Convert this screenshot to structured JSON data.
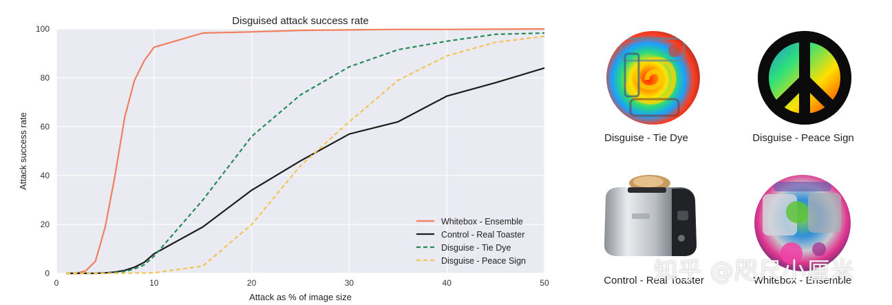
{
  "chart_data": {
    "type": "line",
    "title": "Disguised attack success rate",
    "xlabel": "Attack as % of image size",
    "ylabel": "Attack success rate",
    "xlim": [
      0,
      50
    ],
    "ylim": [
      0,
      100
    ],
    "xticks": [
      0,
      10,
      20,
      30,
      40,
      50
    ],
    "yticks": [
      0,
      20,
      40,
      60,
      80,
      100
    ],
    "grid": true,
    "legend_position": "bottom-right",
    "series": [
      {
        "name": "Whitebox - Ensemble",
        "color": "#f07f5e",
        "style": "solid",
        "points": [
          [
            1,
            0
          ],
          [
            2,
            0
          ],
          [
            3,
            1
          ],
          [
            4,
            5
          ],
          [
            5,
            19
          ],
          [
            6,
            40
          ],
          [
            7,
            64
          ],
          [
            8,
            79
          ],
          [
            9,
            87
          ],
          [
            10,
            92.5
          ],
          [
            15,
            98.3
          ],
          [
            20,
            98.8
          ],
          [
            25,
            99.4
          ],
          [
            30,
            99.6
          ],
          [
            35,
            99.8
          ],
          [
            40,
            99.8
          ],
          [
            45,
            99.9
          ],
          [
            50,
            100
          ]
        ]
      },
      {
        "name": "Control - Real Toaster",
        "color": "#1c1c1c",
        "style": "solid",
        "points": [
          [
            1,
            0
          ],
          [
            2,
            0
          ],
          [
            3,
            0
          ],
          [
            4,
            0
          ],
          [
            5,
            0.2
          ],
          [
            6,
            0.5
          ],
          [
            7,
            1.2
          ],
          [
            8,
            2.5
          ],
          [
            9,
            4.5
          ],
          [
            10,
            8
          ],
          [
            15,
            19
          ],
          [
            20,
            34
          ],
          [
            25,
            46
          ],
          [
            30,
            57
          ],
          [
            35,
            62
          ],
          [
            40,
            72.5
          ],
          [
            45,
            78
          ],
          [
            50,
            84
          ]
        ]
      },
      {
        "name": "Disguise - Tie Dye",
        "color": "#238b55",
        "style": "dashed",
        "points": [
          [
            1,
            0
          ],
          [
            2,
            0
          ],
          [
            3,
            0
          ],
          [
            4,
            0
          ],
          [
            5,
            0
          ],
          [
            6,
            0.3
          ],
          [
            7,
            0.8
          ],
          [
            8,
            1.8
          ],
          [
            9,
            3.5
          ],
          [
            10,
            7
          ],
          [
            15,
            30
          ],
          [
            20,
            56
          ],
          [
            25,
            73
          ],
          [
            30,
            84.5
          ],
          [
            35,
            91.5
          ],
          [
            40,
            95
          ],
          [
            45,
            97.8
          ],
          [
            50,
            98.3
          ]
        ]
      },
      {
        "name": "Disguise - Peace Sign",
        "color": "#f5c353",
        "style": "dashed",
        "points": [
          [
            1,
            0
          ],
          [
            5,
            0
          ],
          [
            10,
            0.2
          ],
          [
            15,
            3
          ],
          [
            20,
            20
          ],
          [
            25,
            44
          ],
          [
            30,
            62
          ],
          [
            35,
            79
          ],
          [
            40,
            89
          ],
          [
            45,
            94.5
          ],
          [
            50,
            97
          ]
        ]
      }
    ]
  },
  "patches": [
    {
      "label": "Disguise - Tie Dye",
      "kind": "tie-dye"
    },
    {
      "label": "Disguise - Peace Sign",
      "kind": "peace-sign"
    },
    {
      "label": "Control - Real Toaster",
      "kind": "toaster"
    },
    {
      "label": "Whitebox - Ensemble",
      "kind": "whitebox"
    }
  ],
  "watermark": "知乎 @咫尺小厘米"
}
